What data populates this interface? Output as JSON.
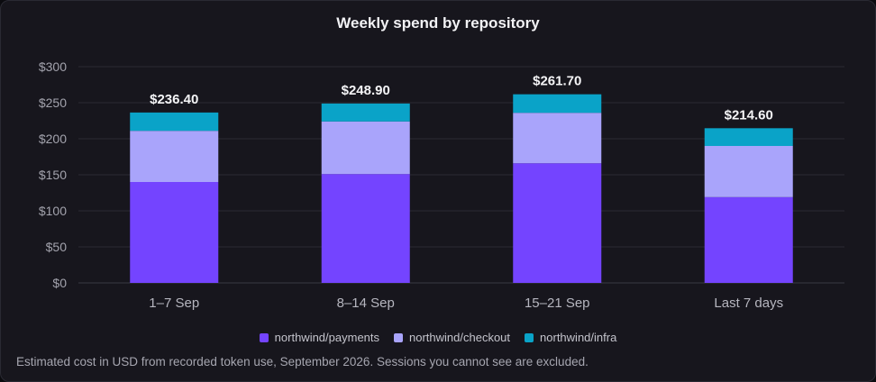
{
  "chart_data": {
    "type": "bar",
    "stacked": true,
    "title": "Weekly spend by repository",
    "categories": [
      "1–7 Sep",
      "8–14 Sep",
      "15–21 Sep",
      "Last 7 days"
    ],
    "series": [
      {
        "name": "northwind/payments",
        "values": [
          140,
          151,
          166,
          119
        ],
        "color": "#7444ff"
      },
      {
        "name": "northwind/checkout",
        "values": [
          71,
          73,
          70,
          71
        ],
        "color": "#a9a4fb"
      },
      {
        "name": "northwind/infra",
        "values": [
          25.4,
          24.9,
          25.7,
          24.6
        ],
        "color": "#0aa3c8"
      }
    ],
    "totals": [
      "$236.40",
      "$248.90",
      "$261.70",
      "$214.60"
    ],
    "ylim": [
      0,
      300
    ],
    "yticks": [
      0,
      50,
      100,
      150,
      200,
      250,
      300
    ],
    "ytick_labels": [
      "$0",
      "$50",
      "$100",
      "$150",
      "$200",
      "$250",
      "$300"
    ],
    "xlabel": "",
    "ylabel": "",
    "grid": true,
    "legend_position": "bottom-center"
  },
  "footnote": "Estimated cost in USD from recorded token use, September 2026. Sessions you cannot see are excluded."
}
